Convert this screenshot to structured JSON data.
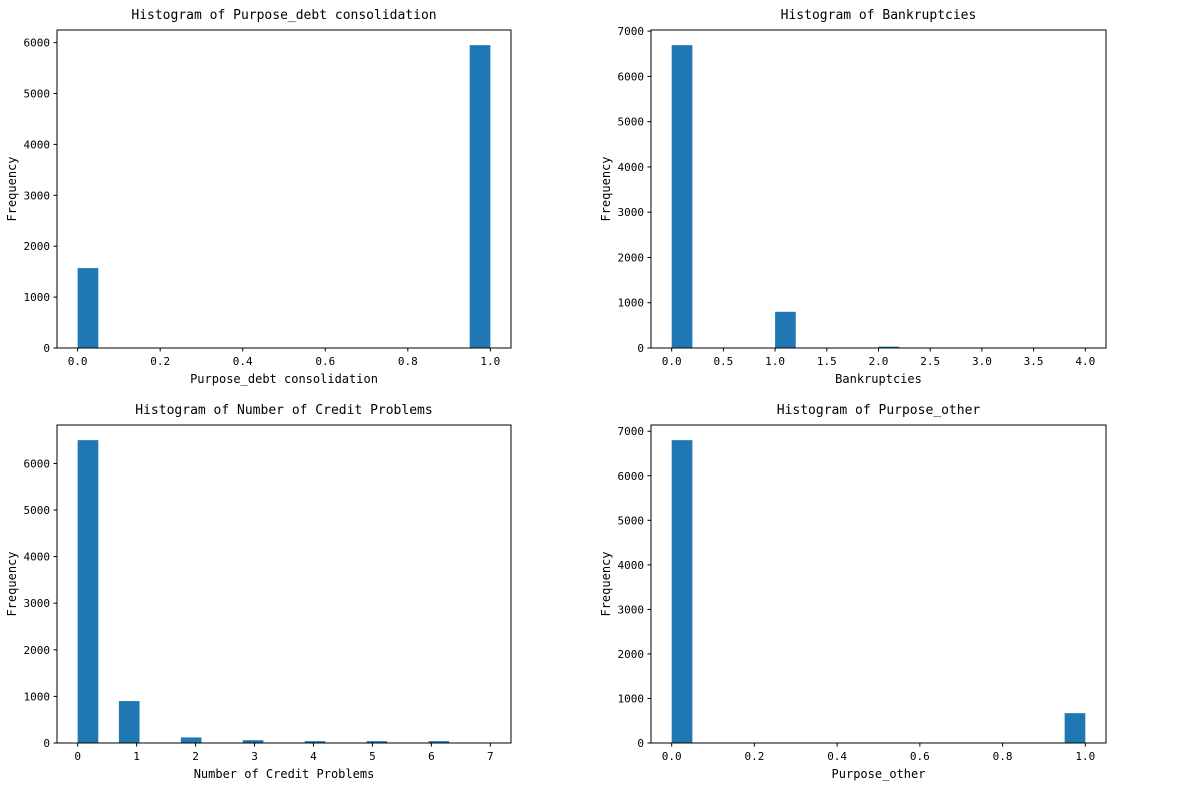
{
  "figure": {
    "background": "#ffffff",
    "text_color": "#000000",
    "bar_color": "#1f77b4",
    "spine_color": "#000000"
  },
  "chart_data": [
    {
      "type": "bar",
      "variant": "histogram",
      "title": "Histogram of Purpose_debt consolidation",
      "xlabel": "Purpose_debt consolidation",
      "ylabel": "Frequency",
      "grid": false,
      "legend": null,
      "xlim": [
        -0.05,
        1.05
      ],
      "ylim": [
        0,
        6248
      ],
      "xtick_values": [
        0.0,
        0.2,
        0.4,
        0.6,
        0.8,
        1.0
      ],
      "xtick_labels": [
        "0.0",
        "0.2",
        "0.4",
        "0.6",
        "0.8",
        "1.0"
      ],
      "ytick_values": [
        0,
        1000,
        2000,
        3000,
        4000,
        5000,
        6000
      ],
      "ytick_labels": [
        "0",
        "1000",
        "2000",
        "3000",
        "4000",
        "5000",
        "6000"
      ],
      "bins": [
        {
          "from": 0.0,
          "to": 0.05,
          "count": 1570
        },
        {
          "from": 0.95,
          "to": 1.0,
          "count": 5950
        }
      ]
    },
    {
      "type": "bar",
      "variant": "histogram",
      "title": "Histogram of Bankruptcies",
      "xlabel": "Bankruptcies",
      "ylabel": "Frequency",
      "grid": false,
      "legend": null,
      "xlim": [
        -0.2,
        4.2
      ],
      "ylim": [
        0,
        7025
      ],
      "xtick_values": [
        0.0,
        0.5,
        1.0,
        1.5,
        2.0,
        2.5,
        3.0,
        3.5,
        4.0
      ],
      "xtick_labels": [
        "0.0",
        "0.5",
        "1.0",
        "1.5",
        "2.0",
        "2.5",
        "3.0",
        "3.5",
        "4.0"
      ],
      "ytick_values": [
        0,
        1000,
        2000,
        3000,
        4000,
        5000,
        6000,
        7000
      ],
      "ytick_labels": [
        "0",
        "1000",
        "2000",
        "3000",
        "4000",
        "5000",
        "6000",
        "7000"
      ],
      "bins": [
        {
          "from": 0.0,
          "to": 0.2,
          "count": 6690
        },
        {
          "from": 1.0,
          "to": 1.2,
          "count": 800
        },
        {
          "from": 2.0,
          "to": 2.2,
          "count": 30
        },
        {
          "from": 3.0,
          "to": 3.2,
          "count": 8
        },
        {
          "from": 3.8,
          "to": 4.0,
          "count": 2
        }
      ]
    },
    {
      "type": "bar",
      "variant": "histogram",
      "title": "Histogram of Number of Credit Problems",
      "xlabel": "Number of Credit Problems",
      "ylabel": "Frequency",
      "grid": false,
      "legend": null,
      "xlim": [
        -0.35,
        7.35
      ],
      "ylim": [
        0,
        6825
      ],
      "xtick_values": [
        0,
        1,
        2,
        3,
        4,
        5,
        6,
        7
      ],
      "xtick_labels": [
        "0",
        "1",
        "2",
        "3",
        "4",
        "5",
        "6",
        "7"
      ],
      "ytick_values": [
        0,
        1000,
        2000,
        3000,
        4000,
        5000,
        6000
      ],
      "ytick_labels": [
        "0",
        "1000",
        "2000",
        "3000",
        "4000",
        "5000",
        "6000"
      ],
      "bins": [
        {
          "from": 0.0,
          "to": 0.35,
          "count": 6500
        },
        {
          "from": 0.7,
          "to": 1.05,
          "count": 900
        },
        {
          "from": 1.75,
          "to": 2.1,
          "count": 120
        },
        {
          "from": 2.8,
          "to": 3.15,
          "count": 60
        },
        {
          "from": 3.85,
          "to": 4.2,
          "count": 40
        },
        {
          "from": 4.9,
          "to": 5.25,
          "count": 40
        },
        {
          "from": 5.95,
          "to": 6.3,
          "count": 40
        },
        {
          "from": 6.65,
          "to": 7.0,
          "count": 10
        }
      ]
    },
    {
      "type": "bar",
      "variant": "histogram",
      "title": "Histogram of Purpose_other",
      "xlabel": "Purpose_other",
      "ylabel": "Frequency",
      "grid": false,
      "legend": null,
      "xlim": [
        -0.05,
        1.05
      ],
      "ylim": [
        0,
        7140
      ],
      "xtick_values": [
        0.0,
        0.2,
        0.4,
        0.6,
        0.8,
        1.0
      ],
      "xtick_labels": [
        "0.0",
        "0.2",
        "0.4",
        "0.6",
        "0.8",
        "1.0"
      ],
      "ytick_values": [
        0,
        1000,
        2000,
        3000,
        4000,
        5000,
        6000,
        7000
      ],
      "ytick_labels": [
        "0",
        "1000",
        "2000",
        "3000",
        "4000",
        "5000",
        "6000",
        "7000"
      ],
      "bins": [
        {
          "from": 0.0,
          "to": 0.05,
          "count": 6800
        },
        {
          "from": 0.95,
          "to": 1.0,
          "count": 670
        }
      ]
    }
  ]
}
